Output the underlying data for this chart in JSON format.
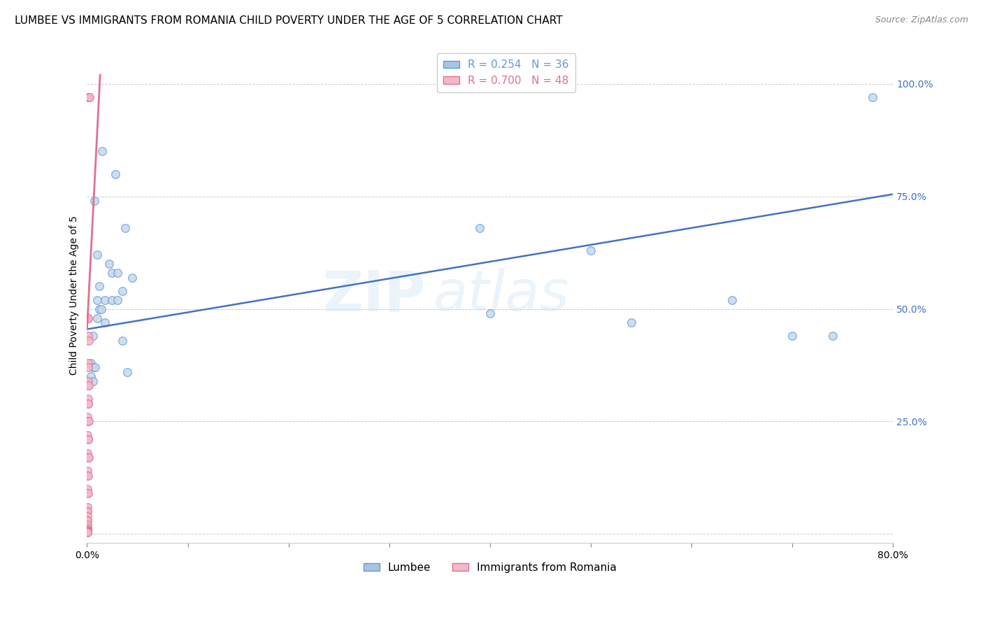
{
  "title": "LUMBEE VS IMMIGRANTS FROM ROMANIA CHILD POVERTY UNDER THE AGE OF 5 CORRELATION CHART",
  "source": "Source: ZipAtlas.com",
  "ylabel": "Child Poverty Under the Age of 5",
  "xlim": [
    0.0,
    0.8
  ],
  "ylim": [
    -0.02,
    1.08
  ],
  "xticks": [
    0.0,
    0.1,
    0.2,
    0.3,
    0.4,
    0.5,
    0.6,
    0.7,
    0.8
  ],
  "xtick_labels_show": [
    true,
    false,
    false,
    false,
    false,
    false,
    false,
    false,
    true
  ],
  "ytick_positions": [
    0.0,
    0.25,
    0.5,
    0.75,
    1.0
  ],
  "ytick_labels": [
    "",
    "25.0%",
    "50.0%",
    "75.0%",
    "100.0%"
  ],
  "watermark": "ZIPatlas",
  "legend_entries": [
    {
      "label": "R = 0.254   N = 36",
      "color": "#a8c4e0",
      "edge": "#6699cc"
    },
    {
      "label": "R = 0.700   N = 48",
      "color": "#f4b8c8",
      "edge": "#e07090"
    }
  ],
  "lumbee_color": "#c5d8f0",
  "lumbee_edge_color": "#6699cc",
  "romania_color": "#f4b8c8",
  "romania_edge_color": "#e07090",
  "lumbee_line_color": "#4472c4",
  "romania_line_color": "#e07090",
  "lumbee_scatter": [
    [
      0.002,
      0.97
    ],
    [
      0.015,
      0.85
    ],
    [
      0.028,
      0.8
    ],
    [
      0.007,
      0.74
    ],
    [
      0.038,
      0.68
    ],
    [
      0.01,
      0.62
    ],
    [
      0.022,
      0.6
    ],
    [
      0.025,
      0.58
    ],
    [
      0.03,
      0.58
    ],
    [
      0.045,
      0.57
    ],
    [
      0.012,
      0.55
    ],
    [
      0.035,
      0.54
    ],
    [
      0.01,
      0.52
    ],
    [
      0.018,
      0.52
    ],
    [
      0.025,
      0.52
    ],
    [
      0.03,
      0.52
    ],
    [
      0.012,
      0.5
    ],
    [
      0.014,
      0.5
    ],
    [
      0.01,
      0.48
    ],
    [
      0.018,
      0.47
    ],
    [
      0.006,
      0.44
    ],
    [
      0.035,
      0.43
    ],
    [
      0.004,
      0.38
    ],
    [
      0.006,
      0.37
    ],
    [
      0.008,
      0.37
    ],
    [
      0.04,
      0.36
    ],
    [
      0.004,
      0.35
    ],
    [
      0.006,
      0.34
    ],
    [
      0.39,
      0.68
    ],
    [
      0.5,
      0.63
    ],
    [
      0.4,
      0.49
    ],
    [
      0.54,
      0.47
    ],
    [
      0.64,
      0.52
    ],
    [
      0.7,
      0.44
    ],
    [
      0.74,
      0.44
    ],
    [
      0.78,
      0.97
    ]
  ],
  "romania_scatter": [
    [
      0.0008,
      0.97
    ],
    [
      0.0015,
      0.97
    ],
    [
      0.002,
      0.97
    ],
    [
      0.0025,
      0.97
    ],
    [
      0.0008,
      0.48
    ],
    [
      0.0012,
      0.48
    ],
    [
      0.0008,
      0.44
    ],
    [
      0.0015,
      0.43
    ],
    [
      0.0008,
      0.38
    ],
    [
      0.0012,
      0.37
    ],
    [
      0.0008,
      0.34
    ],
    [
      0.001,
      0.33
    ],
    [
      0.0015,
      0.33
    ],
    [
      0.0008,
      0.3
    ],
    [
      0.001,
      0.29
    ],
    [
      0.0012,
      0.29
    ],
    [
      0.0005,
      0.26
    ],
    [
      0.0008,
      0.25
    ],
    [
      0.001,
      0.25
    ],
    [
      0.0015,
      0.25
    ],
    [
      0.0005,
      0.22
    ],
    [
      0.0008,
      0.21
    ],
    [
      0.001,
      0.21
    ],
    [
      0.0005,
      0.18
    ],
    [
      0.0008,
      0.17
    ],
    [
      0.001,
      0.17
    ],
    [
      0.0015,
      0.17
    ],
    [
      0.0003,
      0.14
    ],
    [
      0.0005,
      0.13
    ],
    [
      0.0008,
      0.13
    ],
    [
      0.0003,
      0.1
    ],
    [
      0.0005,
      0.09
    ],
    [
      0.0008,
      0.09
    ],
    [
      0.0003,
      0.06
    ],
    [
      0.0005,
      0.05
    ],
    [
      0.0007,
      0.05
    ],
    [
      0.0002,
      0.04
    ],
    [
      0.0003,
      0.03
    ],
    [
      0.0005,
      0.03
    ],
    [
      0.0002,
      0.02
    ],
    [
      0.0003,
      0.015
    ],
    [
      0.0002,
      0.01
    ],
    [
      0.0003,
      0.008
    ],
    [
      0.0001,
      0.007
    ],
    [
      0.0002,
      0.006
    ],
    [
      0.0001,
      0.005
    ],
    [
      0.0001,
      0.004
    ],
    [
      0.0001,
      0.003
    ]
  ],
  "lumbee_line": {
    "x0": 0.0,
    "y0": 0.455,
    "x1": 0.8,
    "y1": 0.755
  },
  "romania_line": {
    "x0": 0.0,
    "y0": 0.455,
    "x1": 0.013,
    "y1": 1.02
  },
  "grid_color": "#cccccc",
  "background_color": "#ffffff",
  "title_fontsize": 11,
  "axis_label_fontsize": 10,
  "tick_fontsize": 10,
  "tick_color": "#4472c4",
  "marker_size": 70
}
